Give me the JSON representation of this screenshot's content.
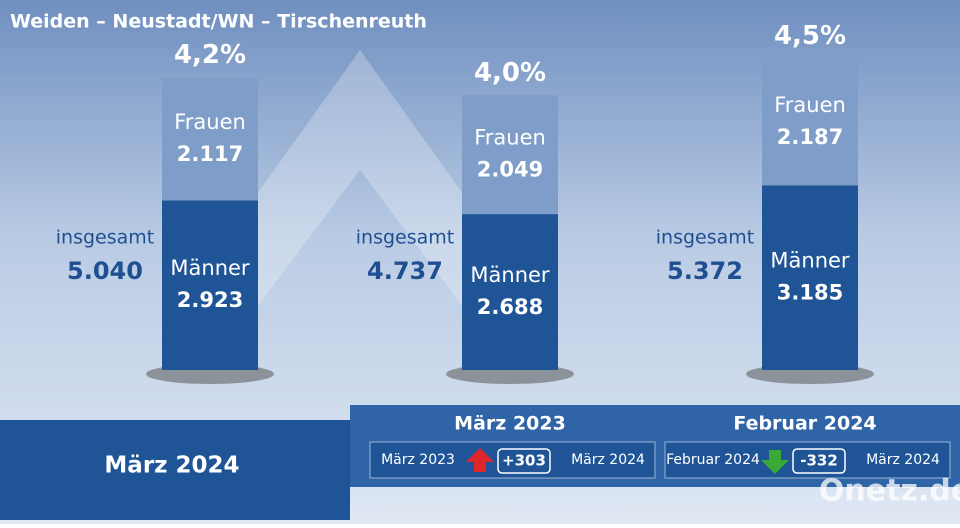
{
  "chart_data": {
    "type": "bar",
    "title": "Weiden – Neustadt/WN – Tirschenreuth",
    "categories": [
      "März 2024",
      "März 2023",
      "Februar 2024"
    ],
    "series": [
      {
        "name": "Männer",
        "color": "#1f5597",
        "values": [
          2923,
          2688,
          3185
        ],
        "value_labels": [
          "2.923",
          "2.688",
          "3.185"
        ]
      },
      {
        "name": "Frauen",
        "color": "#7e9dc8",
        "values": [
          2117,
          2049,
          2187
        ],
        "value_labels": [
          "2.117",
          "2.049",
          "2.187"
        ]
      }
    ],
    "total_name": "insgesamt",
    "totals": [
      5040,
      4737,
      5372
    ],
    "total_labels": [
      "5.040",
      "4.737",
      "5.372"
    ],
    "rates": [
      4.2,
      4.0,
      4.5
    ],
    "rate_labels": [
      "4,2%",
      "4,0%",
      "4,5%"
    ],
    "comparisons": [
      {
        "title": "März 2023",
        "from": "März 2023",
        "to": "März 2024",
        "change": 303,
        "change_label": "+303"
      },
      {
        "title": "Februar 2024",
        "from": "Februar 2024",
        "to": "März 2024",
        "change": -332,
        "change_label": "-332"
      }
    ],
    "brand": "Onetz.de"
  }
}
